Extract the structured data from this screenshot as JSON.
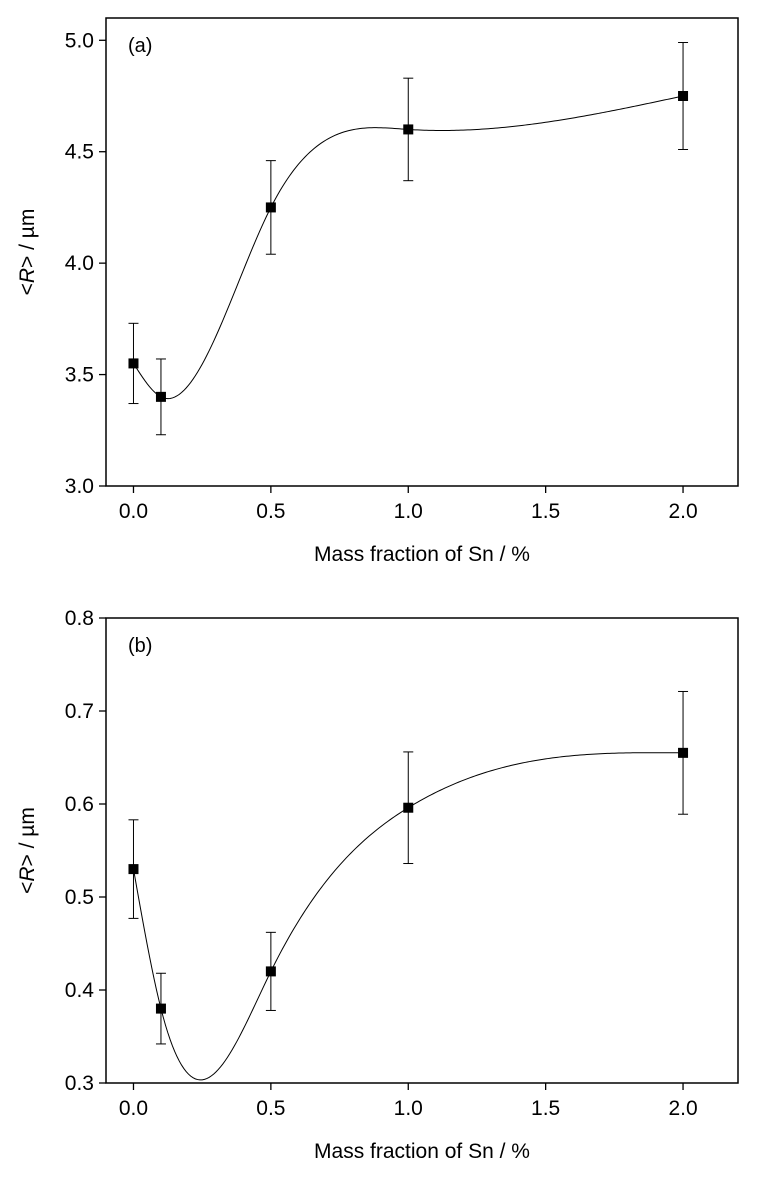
{
  "chart_data": [
    {
      "type": "scatter",
      "panel_label": "(a)",
      "xlabel": "Mass fraction of Sn / %",
      "ylabel": {
        "lt": "<",
        "var": "R",
        "rest": "> / µm"
      },
      "xlim": [
        -0.1,
        2.2
      ],
      "ylim": [
        3.0,
        5.1
      ],
      "xticks": [
        "0.0",
        "0.5",
        "1.0",
        "1.5",
        "2.0"
      ],
      "xtick_values": [
        0.0,
        0.5,
        1.0,
        1.5,
        2.0
      ],
      "yticks": [
        "3.0",
        "3.5",
        "4.0",
        "4.5",
        "5.0"
      ],
      "ytick_values": [
        3.0,
        3.5,
        4.0,
        4.5,
        5.0
      ],
      "x": [
        0.0,
        0.1,
        0.5,
        1.0,
        2.0
      ],
      "y": [
        3.55,
        3.4,
        4.25,
        4.6,
        4.75
      ],
      "yerr": [
        0.18,
        0.17,
        0.21,
        0.23,
        0.24
      ],
      "fit_curve": true,
      "grid": false
    },
    {
      "type": "scatter",
      "panel_label": "(b)",
      "xlabel": "Mass fraction of Sn / %",
      "ylabel": {
        "lt": "<",
        "var": "R",
        "rest": "> / µm"
      },
      "xlim": [
        -0.1,
        2.2
      ],
      "ylim": [
        0.3,
        0.8
      ],
      "xticks": [
        "0.0",
        "0.5",
        "1.0",
        "1.5",
        "2.0"
      ],
      "xtick_values": [
        0.0,
        0.5,
        1.0,
        1.5,
        2.0
      ],
      "yticks": [
        "0.3",
        "0.4",
        "0.5",
        "0.6",
        "0.7",
        "0.8"
      ],
      "ytick_values": [
        0.3,
        0.4,
        0.5,
        0.6,
        0.7,
        0.8
      ],
      "x": [
        0.0,
        0.1,
        0.5,
        1.0,
        2.0
      ],
      "y": [
        0.53,
        0.38,
        0.42,
        0.596,
        0.655
      ],
      "yerr": [
        0.053,
        0.038,
        0.042,
        0.06,
        0.066
      ],
      "fit_curve": true,
      "grid": false
    }
  ]
}
